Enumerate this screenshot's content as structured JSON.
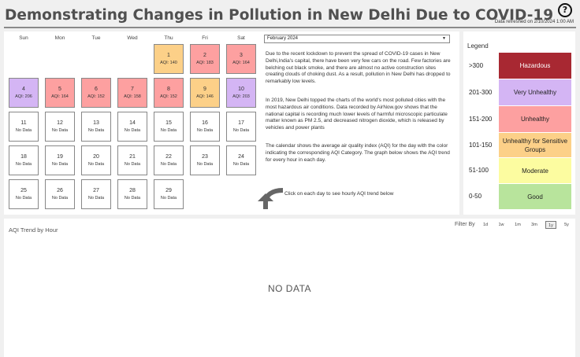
{
  "header": {
    "title": "Demonstrating Changes in Pollution in New Delhi Due to COVID-19",
    "refreshed": "Data refreshed on 2/10/2024 1:00 AM",
    "help_symbol": "?"
  },
  "calendar": {
    "weekdays": [
      "Sun",
      "Mon",
      "Tue",
      "Wed",
      "Thu",
      "Fri",
      "Sat"
    ],
    "days": [
      {
        "num": "1",
        "aqi": "AQI: 140",
        "color": "#fcd088"
      },
      {
        "num": "2",
        "aqi": "AQI: 183",
        "color": "#fda0a0"
      },
      {
        "num": "3",
        "aqi": "AQI: 164",
        "color": "#fda0a0"
      },
      {
        "num": "4",
        "aqi": "AQI: 206",
        "color": "#d4b5f4"
      },
      {
        "num": "5",
        "aqi": "AQI: 164",
        "color": "#fda0a0"
      },
      {
        "num": "6",
        "aqi": "AQI: 152",
        "color": "#fda0a0"
      },
      {
        "num": "7",
        "aqi": "AQI: 158",
        "color": "#fda0a0"
      },
      {
        "num": "8",
        "aqi": "AQI: 152",
        "color": "#fda0a0"
      },
      {
        "num": "9",
        "aqi": "AQI: 146",
        "color": "#fcd088"
      },
      {
        "num": "10",
        "aqi": "AQI: 203",
        "color": "#d4b5f4"
      },
      {
        "num": "11",
        "aqi": "No Data",
        "color": "#ffffff"
      },
      {
        "num": "12",
        "aqi": "No Data",
        "color": "#ffffff"
      },
      {
        "num": "13",
        "aqi": "No Data",
        "color": "#ffffff"
      },
      {
        "num": "14",
        "aqi": "No Data",
        "color": "#ffffff"
      },
      {
        "num": "15",
        "aqi": "No Data",
        "color": "#ffffff"
      },
      {
        "num": "16",
        "aqi": "No Data",
        "color": "#ffffff"
      },
      {
        "num": "17",
        "aqi": "No Data",
        "color": "#ffffff"
      },
      {
        "num": "18",
        "aqi": "No Data",
        "color": "#ffffff"
      },
      {
        "num": "19",
        "aqi": "No Data",
        "color": "#ffffff"
      },
      {
        "num": "20",
        "aqi": "No Data",
        "color": "#ffffff"
      },
      {
        "num": "21",
        "aqi": "No Data",
        "color": "#ffffff"
      },
      {
        "num": "22",
        "aqi": "No Data",
        "color": "#ffffff"
      },
      {
        "num": "23",
        "aqi": "No Data",
        "color": "#ffffff"
      },
      {
        "num": "24",
        "aqi": "No Data",
        "color": "#ffffff"
      },
      {
        "num": "25",
        "aqi": "No Data",
        "color": "#ffffff"
      },
      {
        "num": "26",
        "aqi": "No Data",
        "color": "#ffffff"
      },
      {
        "num": "27",
        "aqi": "No Data",
        "color": "#ffffff"
      },
      {
        "num": "28",
        "aqi": "No Data",
        "color": "#ffffff"
      },
      {
        "num": "29",
        "aqi": "No Data",
        "color": "#ffffff"
      }
    ]
  },
  "month_select": {
    "value": "February 2024",
    "icon": "caret-down-icon"
  },
  "description": {
    "p1": "Due to the recent lockdown to prevent the spread of COVID-19 cases in New Delhi,India's capital, there have been very few cars on the road. Few factories are belching out black smoke, and there are almost no active construction sites creating clouds of choking dust. As a result, pollution in New Delhi has dropped to remarkably low levels.",
    "p2": "In 2019, New Delhi topped the charts of the world's most polluted cities with the most hazardous air conditions. Data recorded by AirNow.gov shows that the national capital is recording much lower levels of harmful microscopic particulate matter known as PM 2.5, and decreased nitrogen dioxide, which is released by vehicles and power plants",
    "p3": "The calendar shows the average air quality index (AQI) for the day with the color indicating the corresponding AQI Category. The graph below shows the AQI trend for every hour in each day."
  },
  "hint": {
    "text": "Click on each day to see hourly AQI trend below",
    "icon": "curved-arrow-icon"
  },
  "legend": {
    "title": "Legend",
    "items": [
      {
        "range": ">300",
        "label": "Hazardous",
        "color": "#a82832",
        "text_color": "#ffffff"
      },
      {
        "range": "201-300",
        "label": "Very Unhealthy",
        "color": "#d4b5f4",
        "text_color": "#222222"
      },
      {
        "range": "151-200",
        "label": "Unhealthy",
        "color": "#fda0a0",
        "text_color": "#222222"
      },
      {
        "range": "101-150",
        "label": "Unhealthy for Sensitive Groups",
        "color": "#fcd088",
        "text_color": "#222222"
      },
      {
        "range": "51-100",
        "label": "Moderate",
        "color": "#fcfca0",
        "text_color": "#222222"
      },
      {
        "range": "0-50",
        "label": "Good",
        "color": "#b8e49c",
        "text_color": "#222222"
      }
    ]
  },
  "trend": {
    "title": "AQI Trend by Hour",
    "filter_label": "Filter By",
    "filters": [
      "1d",
      "1w",
      "1m",
      "3m",
      "1y",
      "5y"
    ],
    "selected_filter": "1y",
    "no_data": "NO DATA"
  }
}
